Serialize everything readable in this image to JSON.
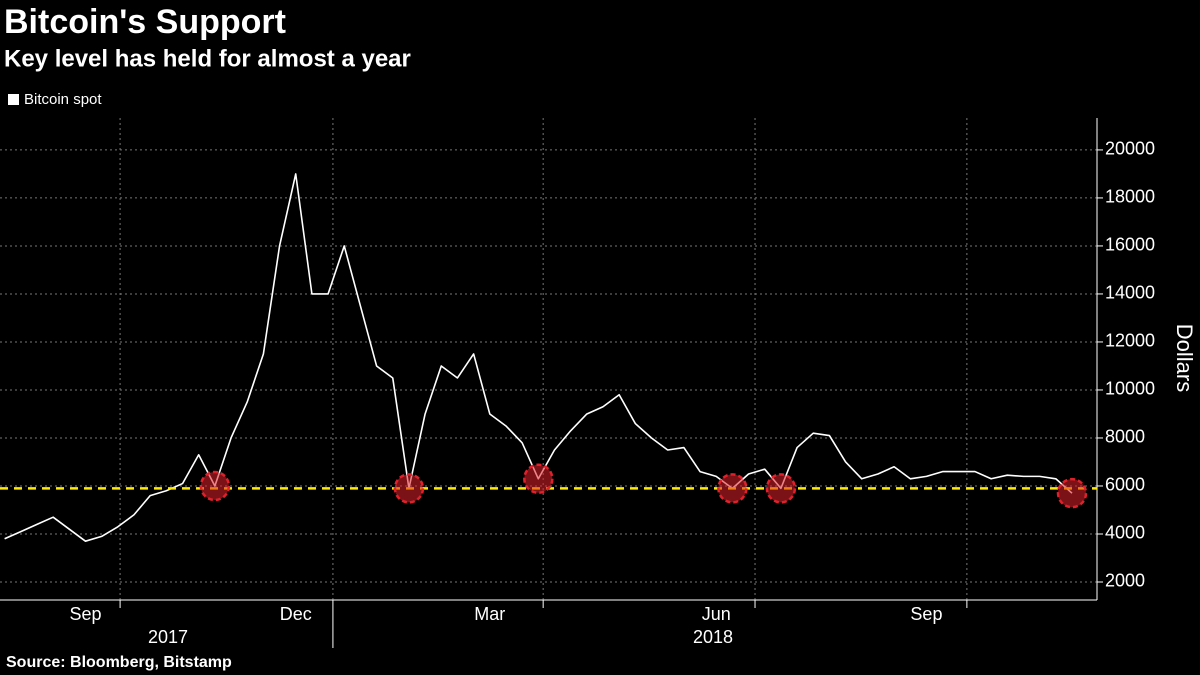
{
  "chart_data": {
    "type": "line",
    "title": "Bitcoin's Support",
    "subtitle": "Key level has held for almost a year",
    "source": "Source: Bloomberg, Bitstamp",
    "y_axis_label": "Dollars",
    "categories": [
      null,
      null,
      null,
      null,
      null,
      "Sep",
      null,
      null,
      null,
      null,
      null,
      null,
      null,
      null,
      null,
      null,
      null,
      null,
      "Dec",
      null,
      null,
      null,
      null,
      null,
      null,
      null,
      null,
      null,
      null,
      null,
      "Mar",
      null,
      null,
      null,
      null,
      null,
      null,
      null,
      null,
      null,
      null,
      null,
      null,
      null,
      "Jun",
      null,
      null,
      null,
      null,
      null,
      null,
      null,
      null,
      null,
      null,
      null,
      null,
      "Sep",
      null,
      null,
      null,
      null,
      null,
      null,
      null,
      null,
      null
    ],
    "year_labels": [
      "2017",
      "2018"
    ],
    "series": [
      {
        "name": "Bitcoin spot",
        "color": "#ffffff",
        "values": [
          3800,
          4100,
          4400,
          4700,
          4200,
          3700,
          3900,
          4300,
          4800,
          5600,
          5800,
          6100,
          7300,
          6000,
          8000,
          9500,
          11500,
          16000,
          19000,
          14000,
          14000,
          16000,
          13500,
          11000,
          10500,
          5900,
          9000,
          11000,
          10500,
          11500,
          9000,
          8500,
          7800,
          6300,
          7500,
          8300,
          9000,
          9300,
          9800,
          8600,
          8000,
          7500,
          7600,
          6600,
          6400,
          5900,
          6500,
          6700,
          5900,
          7600,
          8200,
          8100,
          7000,
          6300,
          6500,
          6800,
          6300,
          6400,
          6600,
          6600,
          6600,
          6300,
          6450,
          6400,
          6400,
          6300,
          5700
        ]
      }
    ],
    "highlight_indices": [
      13,
      25,
      33,
      45,
      48,
      66
    ],
    "support_level": 5900,
    "support_color": "#ffeb00",
    "highlight_color": "#e0202a",
    "ylim": [
      1250,
      21330
    ],
    "yticks": [
      2000,
      4000,
      6000,
      8000,
      10000,
      12000,
      14000,
      16000,
      18000,
      20000
    ],
    "grid": true
  }
}
